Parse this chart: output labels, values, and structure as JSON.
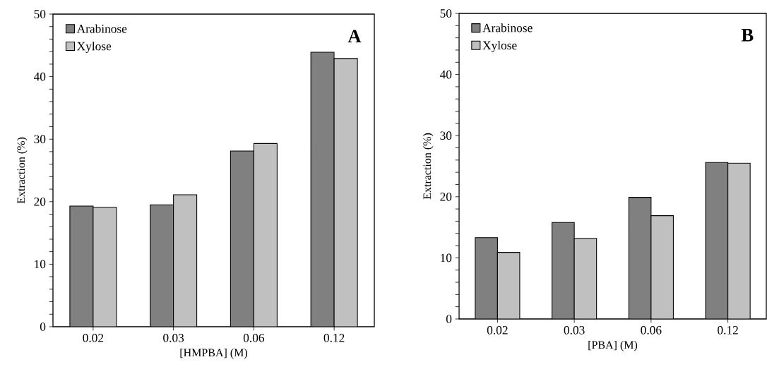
{
  "chart_data": [
    {
      "type": "bar",
      "xlabel": "[HMPBA] (M)",
      "ylabel": "Extraction (%)",
      "annotations": [
        "A"
      ],
      "legend": "top left",
      "categories": [
        "0.02",
        "0.03",
        "0.06",
        "0.12"
      ],
      "series": [
        {
          "name": "Arabinose",
          "color": "#808080",
          "values": [
            19.3,
            19.5,
            28.1,
            43.9
          ]
        },
        {
          "name": "Xylose",
          "color": "#c0c0c0",
          "values": [
            19.1,
            21.1,
            29.3,
            42.9
          ]
        }
      ],
      "ylim": [
        0,
        50
      ],
      "yticks": [
        0,
        {
          "value": 2,
          "label": null
        },
        {
          "value": 4,
          "label": null
        },
        {
          "value": 6,
          "label": null
        },
        {
          "value": 8,
          "label": null
        },
        10,
        {
          "value": 12,
          "label": null
        },
        {
          "value": 14,
          "label": null
        },
        {
          "value": 16,
          "label": null
        },
        {
          "value": 18,
          "label": null
        },
        20,
        {
          "value": 22,
          "label": null
        },
        {
          "value": 24,
          "label": null
        },
        {
          "value": 26,
          "label": null
        },
        {
          "value": 28,
          "label": null
        },
        30,
        {
          "value": 32,
          "label": null
        },
        {
          "value": 34,
          "label": null
        },
        {
          "value": 36,
          "label": null
        },
        {
          "value": 38,
          "label": null
        },
        40,
        {
          "value": 42,
          "label": null
        },
        {
          "value": 44,
          "label": null
        },
        {
          "value": 46,
          "label": null
        },
        {
          "value": 48,
          "label": null
        },
        50
      ]
    },
    {
      "type": "bar",
      "xlabel": "[PBA] (M)",
      "ylabel": "Extraction (%)",
      "annotations": [
        "B"
      ],
      "legend": "top left",
      "categories": [
        "0.02",
        "0.03",
        "0.06",
        "0.12"
      ],
      "series": [
        {
          "name": "Arabinose",
          "color": "#808080",
          "values": [
            13.3,
            15.8,
            19.9,
            25.6
          ]
        },
        {
          "name": "Xylose",
          "color": "#c0c0c0",
          "values": [
            10.9,
            13.2,
            16.9,
            25.5
          ]
        }
      ],
      "ylim": [
        0,
        50
      ],
      "yticks": [
        0,
        {
          "value": 2,
          "label": null
        },
        {
          "value": 4,
          "label": null
        },
        {
          "value": 6,
          "label": null
        },
        {
          "value": 8,
          "label": null
        },
        10,
        {
          "value": 12,
          "label": null
        },
        {
          "value": 14,
          "label": null
        },
        {
          "value": 16,
          "label": null
        },
        {
          "value": 18,
          "label": null
        },
        20,
        {
          "value": 22,
          "label": null
        },
        {
          "value": 24,
          "label": null
        },
        {
          "value": 26,
          "label": null
        },
        {
          "value": 28,
          "label": null
        },
        30,
        {
          "value": 32,
          "label": null
        },
        {
          "value": 34,
          "label": null
        },
        {
          "value": 36,
          "label": null
        },
        {
          "value": 38,
          "label": null
        },
        40,
        {
          "value": 42,
          "label": null
        },
        {
          "value": 44,
          "label": null
        },
        {
          "value": 46,
          "label": null
        },
        {
          "value": 48,
          "label": null
        },
        50
      ]
    }
  ]
}
